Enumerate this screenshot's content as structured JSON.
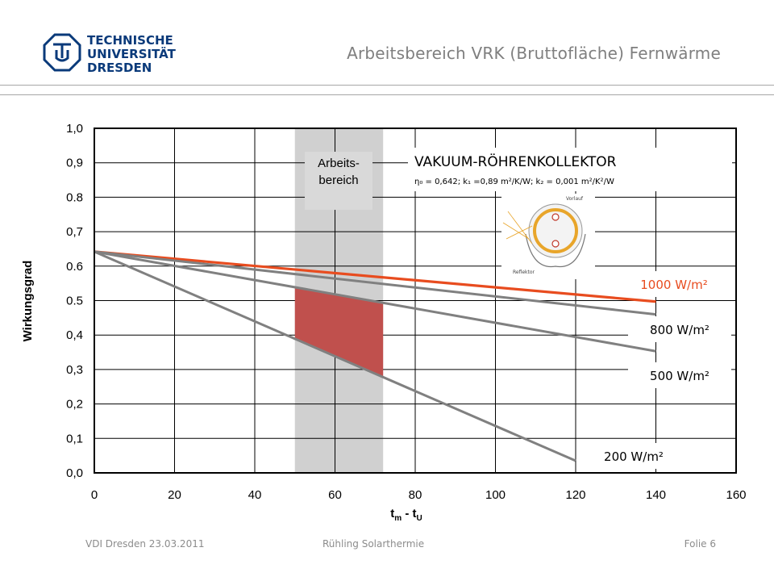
{
  "header": {
    "logo_lines": [
      "TECHNISCHE",
      "UNIVERSITÄT",
      "DRESDEN"
    ],
    "title": "Arbeitsbereich VRK (Bruttofläche) Fernwärme"
  },
  "footer": {
    "left": "VDI Dresden 23.03.2011",
    "middle": "Rühling   Solarthermie",
    "right": "Folie 6"
  },
  "colors": {
    "red_series": "#e84c1f",
    "gray_series": "#808080",
    "band": "#d0d0d0",
    "fill": "#c0504d",
    "title_gray": "#7f7f7f"
  },
  "chart_data": {
    "type": "line",
    "xlabel_main": "t",
    "xlabel_sub1": "m",
    "xlabel_mid": " - t",
    "xlabel_sub2": "U",
    "ylabel": "Wirkungsgrad",
    "xlim": [
      0,
      160
    ],
    "ylim": [
      0,
      1.0
    ],
    "x_ticks": [
      0,
      20,
      40,
      60,
      80,
      100,
      120,
      140,
      160
    ],
    "y_ticks": [
      "0,0",
      "0,1",
      "0,2",
      "0,3",
      "0,4",
      "0.5",
      "0.6",
      "0,7",
      "0.8",
      "0,9",
      "1,0"
    ],
    "grid": true,
    "band": {
      "x_from": 50,
      "x_to": 72,
      "label_line1": "Arbeits-",
      "label_line2": "bereich"
    },
    "filled_region": {
      "x_from": 50,
      "x_to": 72
    },
    "series": [
      {
        "name": "1000 W/m²",
        "color": "#e84c1f",
        "x": [
          0,
          140
        ],
        "y": [
          0.642,
          0.497
        ]
      },
      {
        "name": "800 W/m²",
        "color": "#808080",
        "x": [
          0,
          140
        ],
        "y": [
          0.642,
          0.46
        ]
      },
      {
        "name": "500 W/m²",
        "color": "#808080",
        "x": [
          0,
          140
        ],
        "y": [
          0.642,
          0.353
        ]
      },
      {
        "name": "200 W/m²",
        "color": "#808080",
        "x": [
          0,
          120
        ],
        "y": [
          0.642,
          0.035
        ]
      }
    ],
    "collector": {
      "title": "VAKUUM-RÖHRENKOLLEKTOR",
      "params": "η₀ = 0,642; k₁ =0,89 m²/K/W; k₂ = 0,001 m²/K²/W",
      "diagram_labels": [
        "Vorlauf",
        "Reflektor"
      ]
    }
  }
}
